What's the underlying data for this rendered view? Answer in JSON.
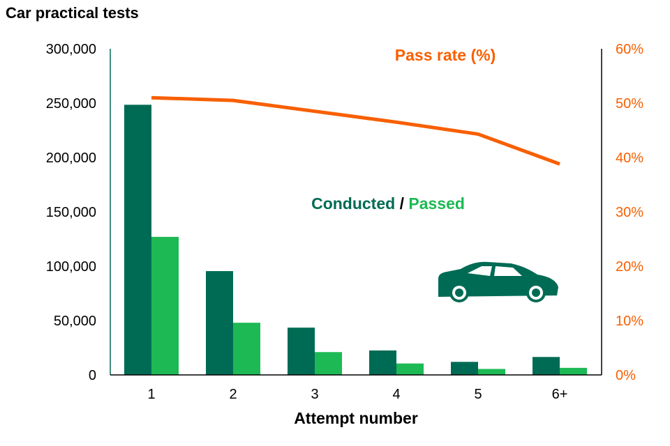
{
  "chart_data": {
    "type": "bar+line",
    "title": "Car practical tests",
    "xlabel": "Attempt number",
    "categories": [
      "1",
      "2",
      "3",
      "4",
      "5",
      "6+"
    ],
    "series": [
      {
        "name": "Conducted",
        "axis": "left",
        "type": "bar",
        "color": "#006b54",
        "values": [
          248500,
          95500,
          43500,
          22500,
          12000,
          16500
        ]
      },
      {
        "name": "Passed",
        "axis": "left",
        "type": "bar",
        "color": "#1db954",
        "values": [
          127000,
          48000,
          21000,
          10500,
          5500,
          6500
        ]
      },
      {
        "name": "Pass rate (%)",
        "axis": "right",
        "type": "line",
        "color": "#f85f00",
        "values": [
          51,
          50.5,
          48.5,
          46.5,
          44.3,
          38.8
        ]
      }
    ],
    "left_axis": {
      "ylim": [
        0,
        300000
      ],
      "ticks": [
        "0",
        "50,000",
        "100,000",
        "150,000",
        "200,000",
        "250,000",
        "300,000"
      ]
    },
    "right_axis": {
      "ylim": [
        0,
        60
      ],
      "ticks": [
        "0%",
        "10%",
        "20%",
        "30%",
        "40%",
        "50%",
        "60%"
      ],
      "color": "#f85f00"
    },
    "annotations": {
      "line_label": "Pass rate (%)",
      "bar_label_conducted": "Conducted",
      "bar_label_separator": " / ",
      "bar_label_passed": "Passed"
    },
    "icon": "car-icon"
  }
}
